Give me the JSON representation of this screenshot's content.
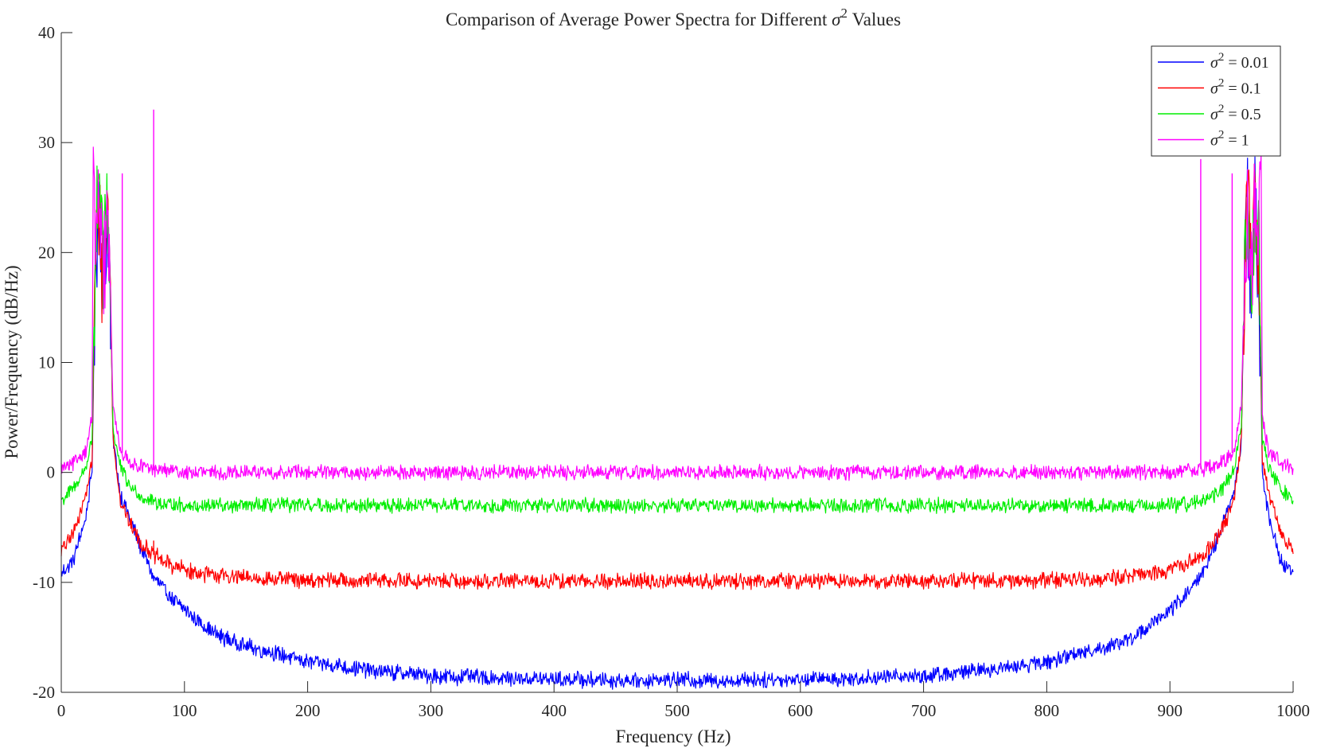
{
  "chart_data": {
    "type": "line",
    "title": "Comparison of Average Power Spectra for Different σ² Values",
    "title_parts": {
      "prefix": "Comparison of Average Power Spectra for Different ",
      "symbol": "σ",
      "sup": "2",
      "suffix": " Values"
    },
    "xlabel": "Frequency (Hz)",
    "ylabel": "Power/Frequency (dB/Hz)",
    "xlim": [
      0,
      1000
    ],
    "ylim": [
      -20,
      40
    ],
    "x_ticks": [
      0,
      100,
      200,
      300,
      400,
      500,
      600,
      700,
      800,
      900,
      1000
    ],
    "x_tick_labels": [
      "0",
      "100",
      "200",
      "300",
      "400",
      "500",
      "600",
      "700",
      "800",
      "900",
      "1000"
    ],
    "y_ticks": [
      -20,
      -10,
      0,
      10,
      20,
      30,
      40
    ],
    "y_tick_labels": [
      "-20",
      "-10",
      "0",
      "10",
      "20",
      "30",
      "40"
    ],
    "grid": false,
    "legend_position": "top-right",
    "symmetric_about": 500,
    "series": [
      {
        "name": "σ² = 0.01",
        "legend": {
          "symbol": "σ",
          "sup": "2",
          "rest": " = 0.01"
        },
        "color": "#0000ff",
        "noise_db": 0.6,
        "points": [
          [
            0,
            -9.2
          ],
          [
            10,
            -8
          ],
          [
            20,
            -4
          ],
          [
            25,
            0
          ],
          [
            28,
            22
          ],
          [
            31,
            26
          ],
          [
            34,
            18
          ],
          [
            37,
            25
          ],
          [
            39,
            22
          ],
          [
            42,
            3
          ],
          [
            48,
            -2
          ],
          [
            55,
            -4
          ],
          [
            65,
            -7
          ],
          [
            75,
            -9.5
          ],
          [
            90,
            -11.5
          ],
          [
            110,
            -13.5
          ],
          [
            130,
            -15
          ],
          [
            150,
            -15.8
          ],
          [
            175,
            -16.5
          ],
          [
            200,
            -17.2
          ],
          [
            250,
            -18
          ],
          [
            300,
            -18.5
          ],
          [
            350,
            -18.7
          ],
          [
            400,
            -18.8
          ],
          [
            450,
            -18.9
          ],
          [
            500,
            -18.9
          ]
        ]
      },
      {
        "name": "σ² = 0.1",
        "legend": {
          "symbol": "σ",
          "sup": "2",
          "rest": " = 0.1"
        },
        "color": "#ff0000",
        "noise_db": 0.6,
        "points": [
          [
            0,
            -7.2
          ],
          [
            10,
            -5.5
          ],
          [
            20,
            -2
          ],
          [
            25,
            1
          ],
          [
            28,
            23
          ],
          [
            31,
            27
          ],
          [
            34,
            19
          ],
          [
            37,
            27.5
          ],
          [
            39,
            22
          ],
          [
            42,
            3
          ],
          [
            48,
            -2.5
          ],
          [
            55,
            -4.5
          ],
          [
            65,
            -6.5
          ],
          [
            75,
            -7.5
          ],
          [
            90,
            -8.5
          ],
          [
            110,
            -9.2
          ],
          [
            150,
            -9.6
          ],
          [
            200,
            -9.8
          ],
          [
            300,
            -9.9
          ],
          [
            500,
            -9.9
          ]
        ]
      },
      {
        "name": "σ² = 0.5",
        "legend": {
          "symbol": "σ",
          "sup": "2",
          "rest": " = 0.5"
        },
        "color": "#00ee00",
        "noise_db": 0.55,
        "points": [
          [
            0,
            -2.5
          ],
          [
            10,
            -1.5
          ],
          [
            20,
            0.5
          ],
          [
            25,
            3
          ],
          [
            28,
            24
          ],
          [
            31,
            26.5
          ],
          [
            34,
            20
          ],
          [
            37,
            26
          ],
          [
            39,
            22
          ],
          [
            42,
            4
          ],
          [
            48,
            0.5
          ],
          [
            55,
            -1.2
          ],
          [
            65,
            -2.2
          ],
          [
            80,
            -2.8
          ],
          [
            100,
            -3
          ],
          [
            500,
            -3
          ]
        ]
      },
      {
        "name": "σ² = 1",
        "legend": {
          "symbol": "σ",
          "sup": "2",
          "rest": " = 1"
        },
        "color": "#ff00ff",
        "noise_db": 0.55,
        "points": [
          [
            0,
            0.3
          ],
          [
            10,
            0.8
          ],
          [
            20,
            2
          ],
          [
            25,
            5
          ],
          [
            26,
            29
          ],
          [
            28,
            23
          ],
          [
            31,
            26
          ],
          [
            34,
            18
          ],
          [
            37,
            25
          ],
          [
            39,
            21
          ],
          [
            42,
            6
          ],
          [
            48,
            2
          ],
          [
            55,
            1
          ],
          [
            65,
            0.5
          ],
          [
            80,
            0.2
          ],
          [
            100,
            0
          ],
          [
            500,
            0
          ]
        ]
      }
    ],
    "spikes": [
      {
        "series": 3,
        "x": 49.5,
        "y": 27.2
      },
      {
        "series": 3,
        "x": 75,
        "y": 33
      },
      {
        "series": 0,
        "x": 75,
        "y": -9.5,
        "dip_to": -9.9
      },
      {
        "series": 3,
        "x": 925,
        "y": 28.5
      },
      {
        "series": 3,
        "x": 950.5,
        "y": 27.2
      },
      {
        "series": 1,
        "x": 75,
        "y": -6.2
      }
    ]
  }
}
